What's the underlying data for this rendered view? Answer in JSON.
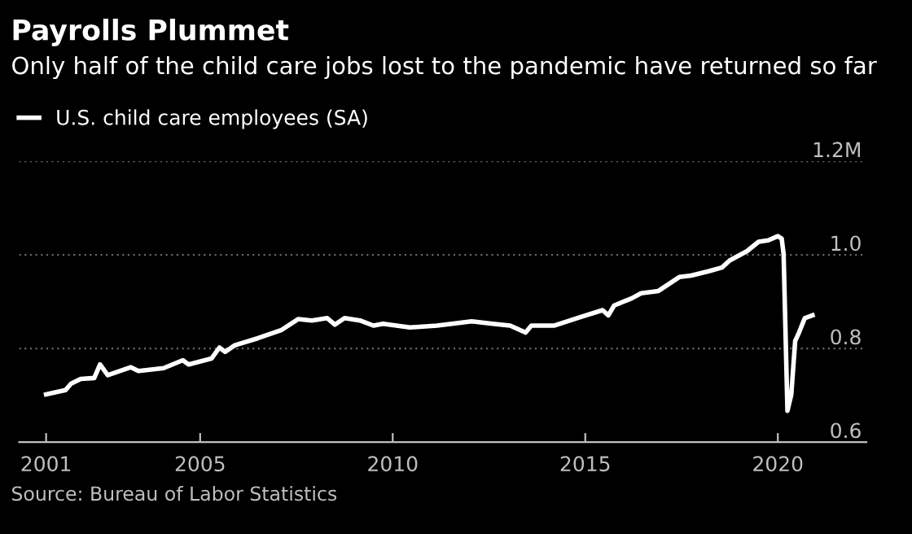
{
  "chart_data": {
    "type": "line",
    "title": "Payrolls Plummet",
    "subtitle": "Only half of the child care jobs lost to the pandemic have returned so far",
    "annotations": [
      "Source: Bureau of Labor Statistics"
    ],
    "series": [
      {
        "name": "U.S. child care employees (SA)",
        "color": "#ffffff",
        "x": [
          2001.0,
          2001.5,
          2001.65,
          2001.9,
          2002.25,
          2002.4,
          2002.6,
          2003.2,
          2003.4,
          2004.05,
          2004.55,
          2004.7,
          2005.3,
          2005.5,
          2005.65,
          2005.9,
          2006.5,
          2007.1,
          2007.55,
          2007.9,
          2008.3,
          2008.5,
          2008.75,
          2009.15,
          2009.5,
          2009.75,
          2010.45,
          2011.15,
          2012.05,
          2012.6,
          2013.05,
          2013.45,
          2013.6,
          2014.2,
          2014.9,
          2015.45,
          2015.6,
          2015.75,
          2016.2,
          2016.45,
          2016.9,
          2017.45,
          2017.75,
          2018.2,
          2018.55,
          2018.75,
          2019.2,
          2019.5,
          2019.75,
          2020.0,
          2020.1,
          2020.15,
          2020.25,
          2020.35,
          2020.45,
          2020.55,
          2020.7,
          2020.9
        ],
        "values": [
          0.702,
          0.711,
          0.725,
          0.735,
          0.737,
          0.766,
          0.743,
          0.76,
          0.752,
          0.758,
          0.775,
          0.766,
          0.779,
          0.802,
          0.793,
          0.807,
          0.822,
          0.839,
          0.863,
          0.86,
          0.865,
          0.851,
          0.865,
          0.86,
          0.849,
          0.853,
          0.845,
          0.849,
          0.858,
          0.853,
          0.849,
          0.834,
          0.849,
          0.849,
          0.868,
          0.882,
          0.871,
          0.892,
          0.907,
          0.918,
          0.923,
          0.953,
          0.956,
          0.965,
          0.973,
          0.988,
          1.008,
          1.028,
          1.031,
          1.04,
          1.035,
          1.002,
          0.667,
          0.702,
          0.816,
          0.834,
          0.865,
          0.871
        ]
      }
    ],
    "xlim": [
      2000.3,
      2022.3
    ],
    "xticks": [
      2001,
      2005,
      2010,
      2015,
      2020
    ],
    "ylim": [
      0.6,
      1.2
    ],
    "yticks": [
      0.6,
      0.8,
      {
        "value": 1.0,
        "label": "1.0"
      },
      {
        "value": 1.2,
        "label": "1.2M"
      }
    ],
    "grid": "y",
    "legend": "top left",
    "line_style": "solid",
    "marker": "none"
  }
}
